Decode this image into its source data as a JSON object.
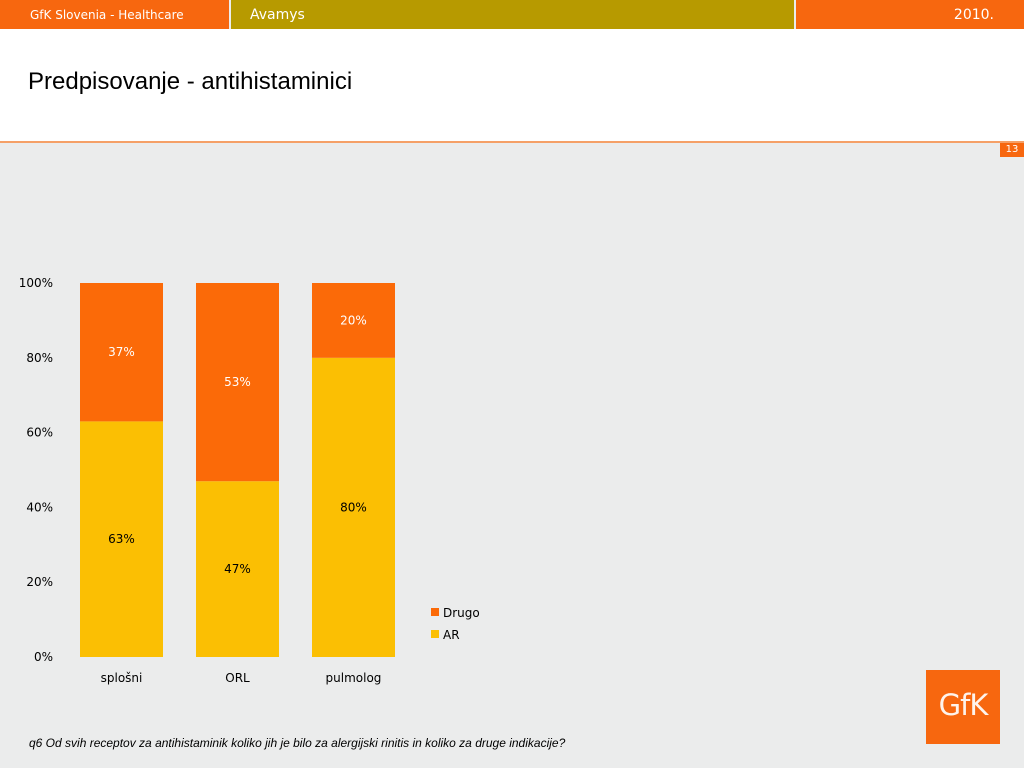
{
  "header": {
    "left_label": "GfK Slovenia - Healthcare",
    "center_label": "Avamys",
    "right_label": "2010."
  },
  "title": "Predpisovanje - antihistaminici",
  "page_number": "13",
  "footnote": "q6 Od svih receptov za antihistaminik koliko jih je bilo za alergijski rinitis in koliko za druge indikacije?",
  "logo": {
    "text": "GfK"
  },
  "colors": {
    "orange": "#f7670f",
    "gold": "#b79a00",
    "drugo": "#fb6a08",
    "ar": "#fbbf03"
  },
  "chart_data": {
    "type": "bar",
    "stacked": true,
    "percent": true,
    "categories": [
      "splošni",
      "ORL",
      "pulmolog"
    ],
    "series": [
      {
        "name": "AR",
        "values": [
          63,
          47,
          80
        ],
        "labels": [
          "63%",
          "47%",
          "80%"
        ],
        "color": "#fbbf03"
      },
      {
        "name": "Drugo",
        "values": [
          37,
          53,
          20
        ],
        "labels": [
          "37%",
          "53%",
          "20%"
        ],
        "color": "#fb6a08"
      }
    ],
    "y_ticks": [
      "0%",
      "20%",
      "40%",
      "60%",
      "80%",
      "100%"
    ],
    "ylim": [
      0,
      100
    ],
    "grid": false,
    "legend": {
      "placement": "right",
      "entries": [
        {
          "name": "Drugo",
          "color": "#fb6a08"
        },
        {
          "name": "AR",
          "color": "#fbbf03"
        }
      ]
    },
    "title": "",
    "xlabel": "",
    "ylabel": ""
  }
}
